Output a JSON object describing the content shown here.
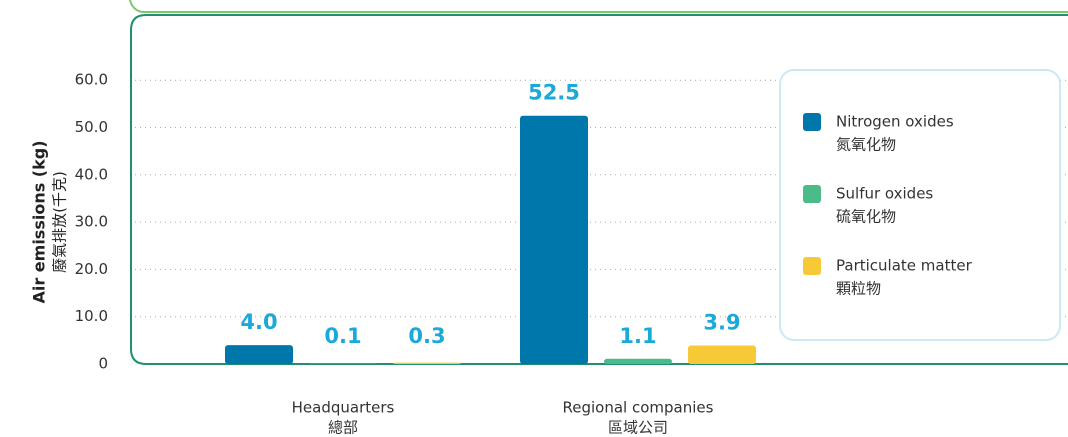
{
  "chart_data": {
    "type": "bar",
    "y_axis_label": "Air emissions (kg)",
    "y_axis_label_zh": "廢氣排放(千克)",
    "categories": [
      "Headquarters",
      "Regional companies"
    ],
    "categories_zh": [
      "總部",
      "區域公司"
    ],
    "series": [
      {
        "name": "Nitrogen oxides",
        "name_zh": "氮氧化物",
        "color": "#0077aa",
        "values": [
          4.0,
          52.5
        ],
        "value_labels": [
          "4.0",
          "52.5"
        ]
      },
      {
        "name": "Sulfur oxides",
        "name_zh": "硫氧化物",
        "color": "#4cbb8a",
        "values": [
          0.1,
          1.1
        ],
        "value_labels": [
          "0.1",
          "1.1"
        ]
      },
      {
        "name": "Particulate matter",
        "name_zh": "顆粒物",
        "color": "#f7c936",
        "values": [
          0.3,
          3.9
        ],
        "value_labels": [
          "0.3",
          "3.9"
        ]
      }
    ],
    "ylim": [
      0,
      74
    ],
    "yticks": [
      0,
      {
        "value": 10,
        "label": "10.0"
      },
      {
        "value": 20,
        "label": "20.0"
      },
      {
        "value": 30,
        "label": "30.0"
      },
      {
        "value": 40,
        "label": "40.0"
      },
      {
        "value": 50,
        "label": "50.0"
      },
      {
        "value": 60,
        "label": "60.0"
      }
    ],
    "grid": true,
    "legend": "right"
  }
}
